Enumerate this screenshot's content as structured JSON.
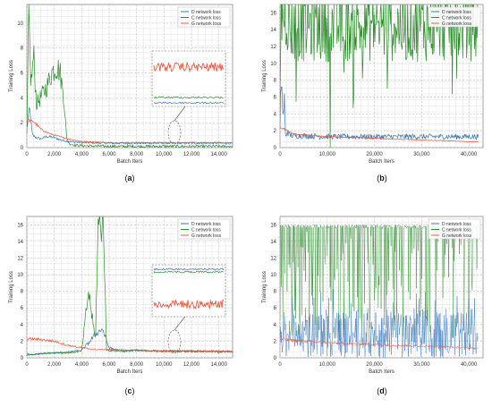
{
  "colors": {
    "d": "#3a78b8",
    "c": "#2e8b2e",
    "g": "#f0583a"
  },
  "chart_data": [
    {
      "type": "line",
      "panel_label": "(a)",
      "xlabel": "Batch Iters",
      "ylabel": "Training Loss",
      "xlim": [
        0,
        15000
      ],
      "ylim": [
        0,
        11.5
      ],
      "xticks": [
        0,
        2000,
        4000,
        6000,
        8000,
        10000,
        12000,
        14000
      ],
      "xtick_labels": [
        "0",
        "2,000",
        "4,000",
        "6,000",
        "8,000",
        "10,000",
        "12,000",
        "14,000"
      ],
      "yticks": [
        0,
        2,
        4,
        6,
        8,
        10
      ],
      "ytick_labels": [
        "0",
        "2",
        "4",
        "6",
        "8",
        "10"
      ],
      "grid": true,
      "legend_position": "top-right",
      "legend": [
        "D network loss",
        "C network loss",
        "G network loss"
      ],
      "inset": true,
      "series": [
        {
          "name": "D network loss",
          "x": [
            0,
            200,
            400,
            700,
            1000,
            1500,
            2000,
            2500,
            3000,
            3500,
            4000,
            6000,
            8000,
            10000,
            12000,
            14000,
            15000
          ],
          "y": [
            1.5,
            3.2,
            1.0,
            0.8,
            0.7,
            0.9,
            0.8,
            0.6,
            0.5,
            0.45,
            0.4,
            0.35,
            0.35,
            0.35,
            0.35,
            0.35,
            0.35
          ]
        },
        {
          "name": "C network loss",
          "x": [
            0,
            150,
            300,
            500,
            700,
            1000,
            1500,
            1800,
            2100,
            2400,
            2700,
            2900,
            3100,
            3500,
            4000,
            6000,
            8000,
            10000,
            12000,
            14000,
            15000
          ],
          "y": [
            1.0,
            10.5,
            5.0,
            7.5,
            3.5,
            4.0,
            5.0,
            6.0,
            6.5,
            6.2,
            4.0,
            0.8,
            0.3,
            0.2,
            0.15,
            0.1,
            0.1,
            0.1,
            0.1,
            0.1,
            0.1
          ]
        },
        {
          "name": "G network loss",
          "x": [
            0,
            500,
            1000,
            1500,
            2000,
            3000,
            4000,
            5000,
            6000,
            8000,
            10000,
            12000,
            14000,
            15000
          ],
          "y": [
            2.2,
            2.1,
            1.5,
            1.2,
            1.0,
            0.7,
            0.5,
            0.45,
            0.4,
            0.4,
            0.4,
            0.4,
            0.4,
            0.4
          ]
        }
      ]
    },
    {
      "type": "line",
      "panel_label": "(b)",
      "xlabel": "Batch Iters",
      "ylabel": "Training Loss",
      "xlim": [
        0,
        43000
      ],
      "ylim": [
        0,
        17
      ],
      "xticks": [
        0,
        10000,
        20000,
        30000,
        40000
      ],
      "xtick_labels": [
        "0",
        "10,000",
        "20,000",
        "30,000",
        "40,000"
      ],
      "yticks": [
        0,
        2,
        4,
        6,
        8,
        10,
        12,
        14,
        16
      ],
      "ytick_labels": [
        "0",
        "2",
        "4",
        "6",
        "8",
        "10",
        "12",
        "14",
        "16"
      ],
      "grid": true,
      "legend_position": "top-right",
      "legend": [
        "D network loss",
        "C network loss",
        "G network loss"
      ],
      "inset": false,
      "series": [
        {
          "name": "D network loss",
          "x": [
            0,
            300,
            600,
            900,
            1200,
            1500,
            2000,
            3000,
            5000,
            10000,
            20000,
            30000,
            40000,
            42000
          ],
          "y": [
            2.0,
            9.5,
            3.0,
            6.0,
            1.0,
            2.0,
            1.5,
            1.4,
            1.4,
            1.3,
            1.3,
            1.3,
            1.3,
            1.3
          ]
        },
        {
          "name": "C network loss",
          "x": [
            0,
            200,
            500,
            1000,
            1500,
            2000,
            2200,
            3000,
            5000,
            10000,
            20000,
            30000,
            40000,
            42000
          ],
          "y": [
            5.0,
            16.0,
            16.0,
            16.0,
            16.0,
            14.5,
            14.5,
            14.5,
            14.5,
            14.5,
            14.5,
            14.5,
            14.5,
            14.5
          ]
        },
        {
          "name": "G network loss",
          "x": [
            0,
            1000,
            2000,
            3000,
            5000,
            10000,
            20000,
            30000,
            40000,
            42000
          ],
          "y": [
            2.4,
            2.2,
            1.8,
            1.6,
            1.5,
            1.3,
            1.1,
            0.9,
            0.7,
            0.7
          ]
        }
      ]
    },
    {
      "type": "line",
      "panel_label": "(c)",
      "xlabel": "Batch Iters",
      "ylabel": "Training Loss",
      "xlim": [
        0,
        15000
      ],
      "ylim": [
        0,
        17
      ],
      "xticks": [
        0,
        2000,
        4000,
        6000,
        8000,
        10000,
        12000,
        14000
      ],
      "xtick_labels": [
        "0",
        "2,000",
        "4,000",
        "6,000",
        "8,000",
        "10,000",
        "12,000",
        "14,000"
      ],
      "yticks": [
        0,
        2,
        4,
        6,
        8,
        10,
        12,
        14,
        16
      ],
      "ytick_labels": [
        "0",
        "2",
        "4",
        "6",
        "8",
        "10",
        "12",
        "14",
        "16"
      ],
      "grid": true,
      "legend_position": "top-right",
      "legend": [
        "D network loss",
        "C network loss",
        "G network loss"
      ],
      "inset": true,
      "series": [
        {
          "name": "D network loss",
          "x": [
            0,
            500,
            1000,
            2000,
            3000,
            4000,
            4500,
            5000,
            5500,
            6000,
            7000,
            8000,
            10000,
            12000,
            14000,
            15000
          ],
          "y": [
            0.5,
            0.4,
            0.5,
            0.6,
            0.7,
            0.9,
            1.8,
            2.8,
            3.5,
            1.2,
            0.8,
            0.9,
            0.8,
            0.8,
            0.8,
            0.8
          ]
        },
        {
          "name": "C network loss",
          "x": [
            0,
            500,
            1000,
            2000,
            3000,
            4000,
            4500,
            5000,
            5200,
            5400,
            5600,
            5800,
            6000,
            7000,
            8000,
            10000,
            12000,
            14000,
            15000
          ],
          "y": [
            0.3,
            0.4,
            0.5,
            0.6,
            0.6,
            0.8,
            8.0,
            2.0,
            15.9,
            16.0,
            16.0,
            1.0,
            0.9,
            0.8,
            0.9,
            0.8,
            0.8,
            0.7,
            0.7
          ]
        },
        {
          "name": "G network loss",
          "x": [
            0,
            1000,
            2000,
            3000,
            4000,
            5000,
            6000,
            8000,
            10000,
            12000,
            14000,
            15000
          ],
          "y": [
            2.3,
            2.2,
            2.0,
            1.5,
            1.2,
            1.0,
            1.0,
            0.9,
            0.8,
            0.8,
            0.8,
            0.8
          ]
        }
      ]
    },
    {
      "type": "line",
      "panel_label": "(d)",
      "xlabel": "Batch Iters",
      "ylabel": "Training Loss",
      "xlim": [
        0,
        43000
      ],
      "ylim": [
        0,
        17
      ],
      "xticks": [
        0,
        10000,
        20000,
        30000,
        40000
      ],
      "xtick_labels": [
        "0",
        "10,000",
        "20,000",
        "30,000",
        "40,000"
      ],
      "yticks": [
        0,
        2,
        4,
        6,
        8,
        10,
        12,
        14,
        16
      ],
      "ytick_labels": [
        "0",
        "2",
        "4",
        "6",
        "8",
        "10",
        "12",
        "14",
        "16"
      ],
      "grid": true,
      "legend_position": "top-right",
      "legend": [
        "D network loss",
        "C network loss",
        "G network loss"
      ],
      "inset": false,
      "series": [
        {
          "name": "D network loss",
          "x": [
            0,
            5000,
            10000,
            20000,
            30000,
            40000,
            42000
          ],
          "y": [
            2.5,
            2.5,
            2.5,
            2.5,
            2.5,
            2.5,
            2.5
          ]
        },
        {
          "name": "C network loss",
          "x": [
            0,
            5000,
            10000,
            20000,
            30000,
            40000,
            42000
          ],
          "y": [
            16.0,
            16.0,
            16.0,
            16.0,
            16.0,
            16.0,
            16.0
          ]
        },
        {
          "name": "G network loss",
          "x": [
            0,
            5000,
            10000,
            20000,
            30000,
            40000,
            42000
          ],
          "y": [
            2.2,
            2.0,
            1.8,
            1.6,
            1.4,
            1.2,
            1.1
          ]
        }
      ]
    }
  ]
}
